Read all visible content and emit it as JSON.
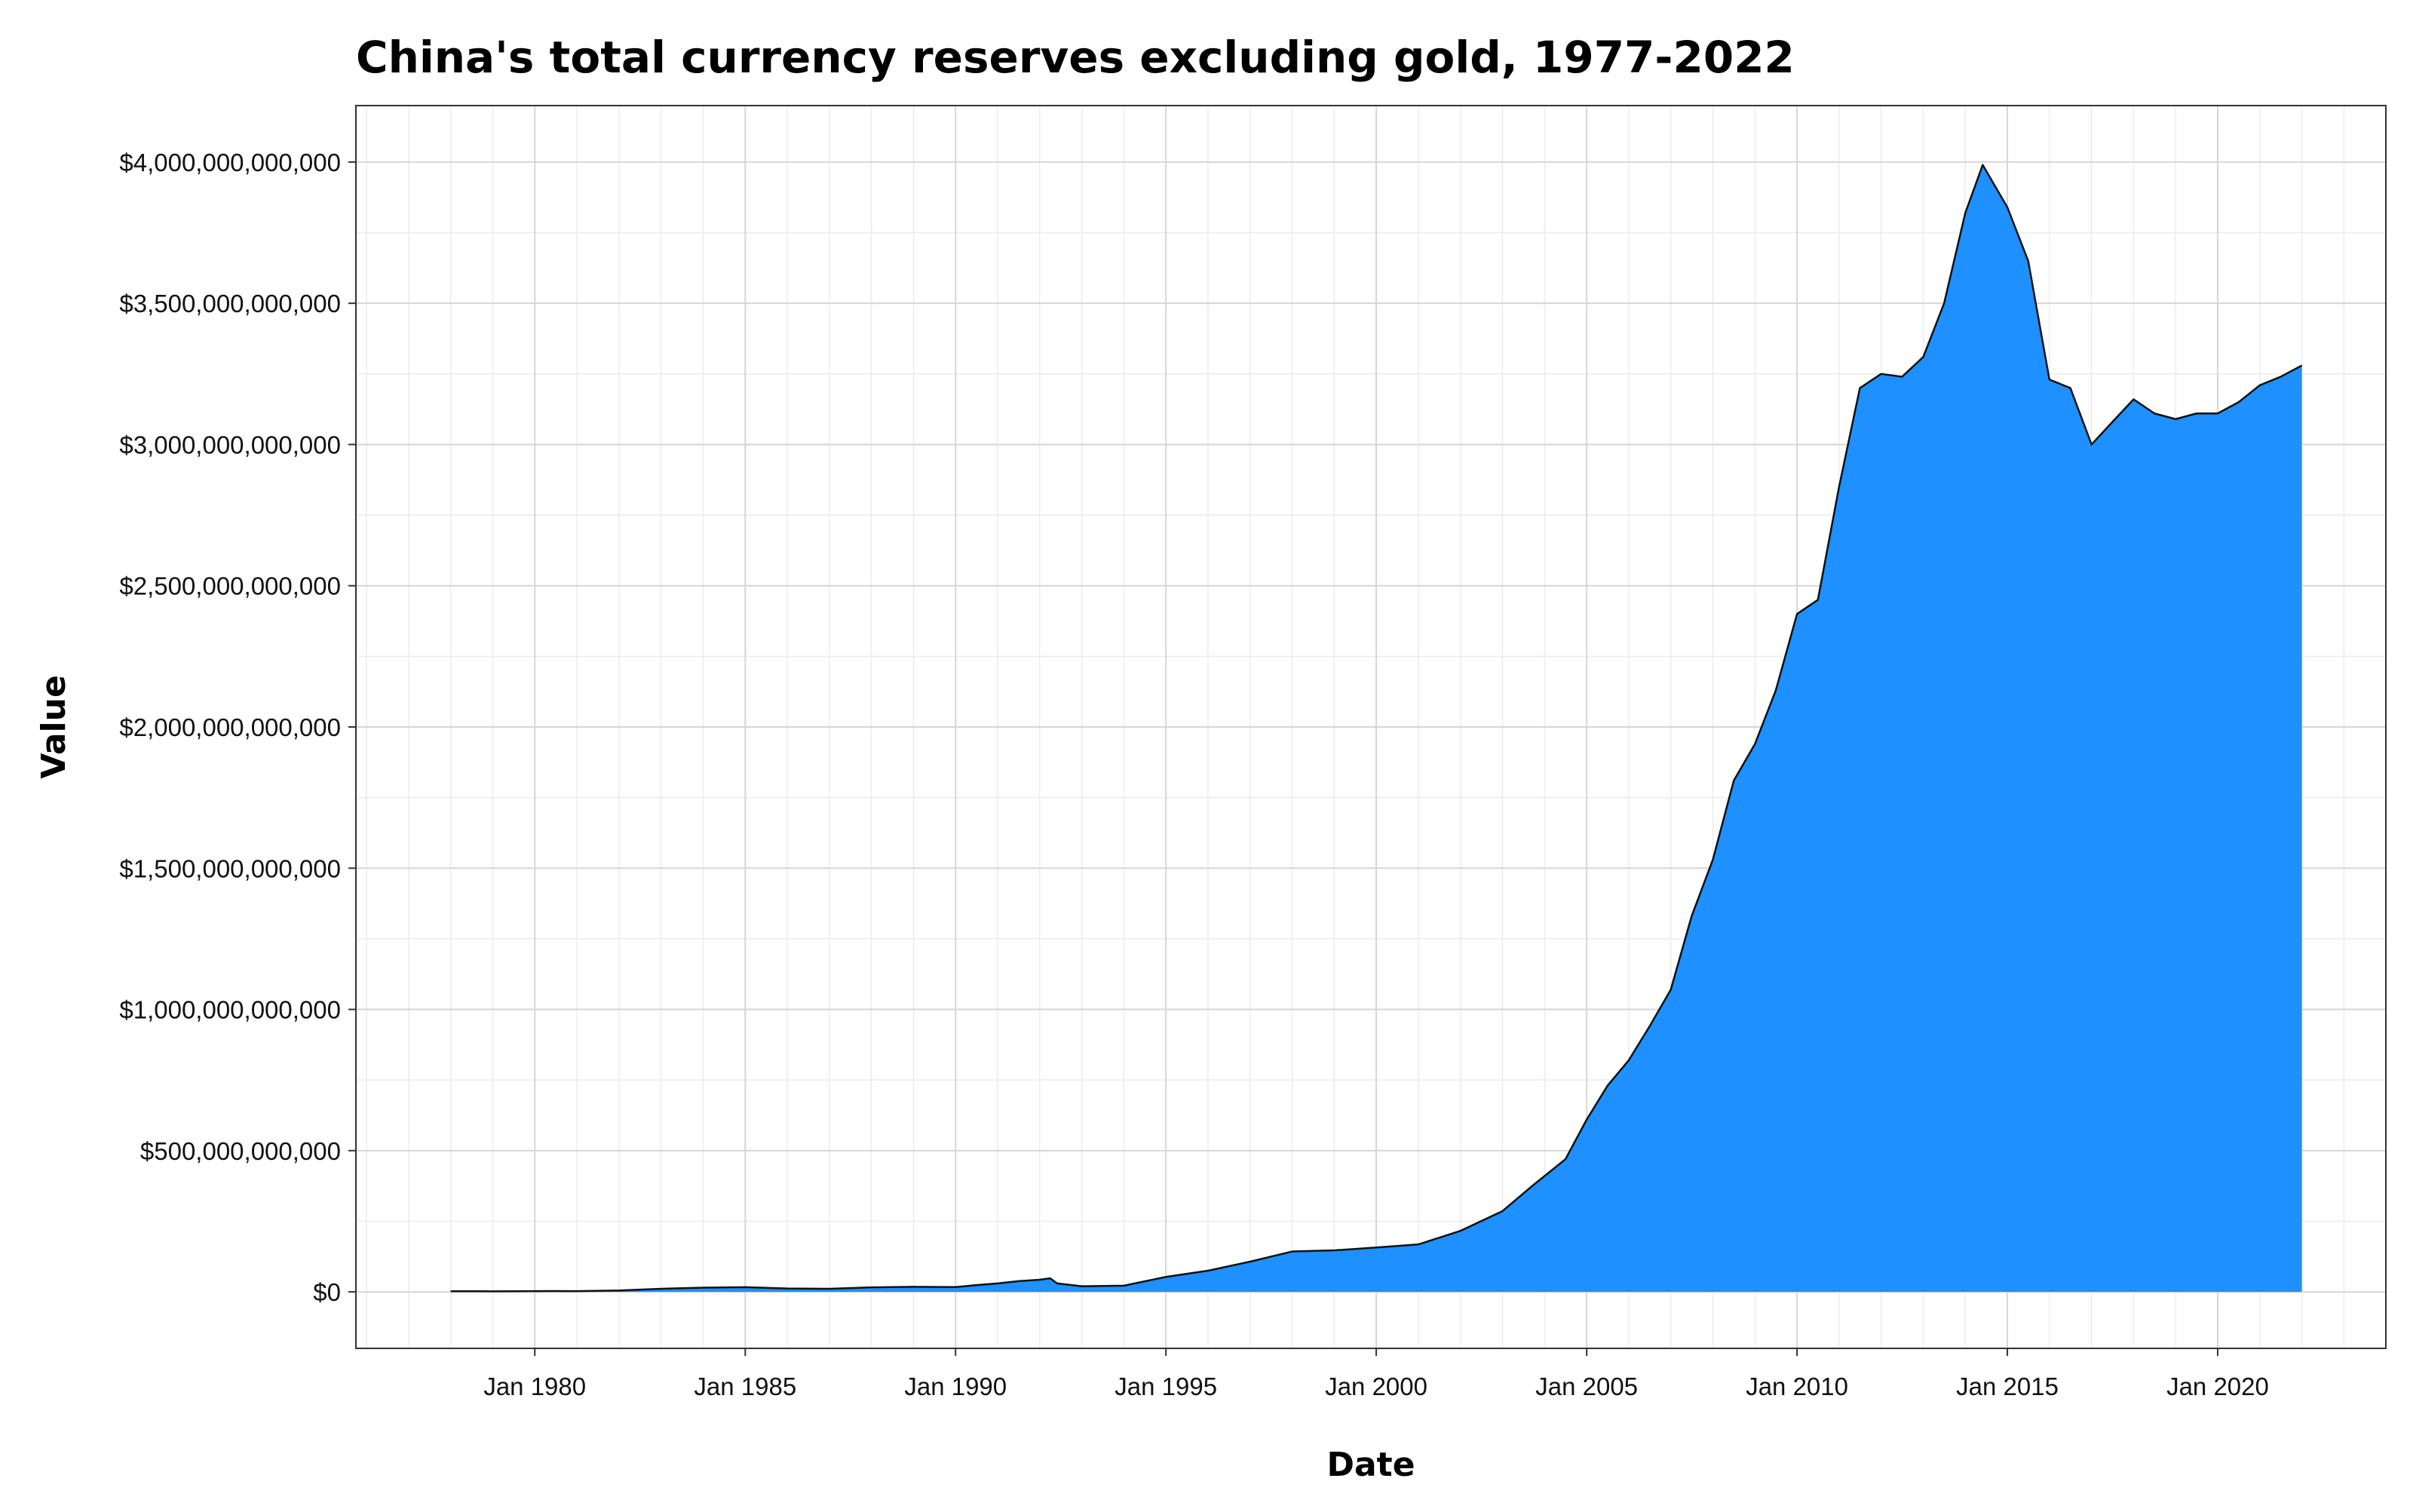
{
  "chart_data": {
    "type": "area",
    "title": "China's total currency reserves excluding gold, 1977-2022",
    "xlabel": "Date",
    "ylabel": "Value",
    "grid": true,
    "legend": "none",
    "fill_color": "#1E90FF",
    "line_color": "#111111",
    "xlim": [
      "1975-10-01",
      "2023-12-31"
    ],
    "ylim": [
      -200000000000,
      4200000000000
    ],
    "x_ticks": [
      {
        "date": "1980-01-01",
        "label": "Jan 1980"
      },
      {
        "date": "1985-01-01",
        "label": "Jan 1985"
      },
      {
        "date": "1990-01-01",
        "label": "Jan 1990"
      },
      {
        "date": "1995-01-01",
        "label": "Jan 1995"
      },
      {
        "date": "2000-01-01",
        "label": "Jan 2000"
      },
      {
        "date": "2005-01-01",
        "label": "Jan 2005"
      },
      {
        "date": "2010-01-01",
        "label": "Jan 2010"
      },
      {
        "date": "2015-01-01",
        "label": "Jan 2015"
      },
      {
        "date": "2020-01-01",
        "label": "Jan 2020"
      }
    ],
    "y_ticks": [
      {
        "value": 0,
        "label": "$0"
      },
      {
        "value": 500000000000,
        "label": "$500,000,000,000"
      },
      {
        "value": 1000000000000,
        "label": "$1,000,000,000,000"
      },
      {
        "value": 1500000000000,
        "label": "$1,500,000,000,000"
      },
      {
        "value": 2000000000000,
        "label": "$2,000,000,000,000"
      },
      {
        "value": 2500000000000,
        "label": "$2,500,000,000,000"
      },
      {
        "value": 3000000000000,
        "label": "$3,000,000,000,000"
      },
      {
        "value": 3500000000000,
        "label": "$3,500,000,000,000"
      },
      {
        "value": 4000000000000,
        "label": "$4,000,000,000,000"
      }
    ],
    "series": [
      {
        "points": [
          {
            "x": "1977-12-31",
            "y": 2300000000
          },
          {
            "x": "1979-01-01",
            "y": 2000000000
          },
          {
            "x": "1980-01-01",
            "y": 2500000000
          },
          {
            "x": "1980-06-01",
            "y": 3000000000
          },
          {
            "x": "1981-01-01",
            "y": 2500000000
          },
          {
            "x": "1982-01-01",
            "y": 5000000000
          },
          {
            "x": "1983-01-01",
            "y": 11000000000
          },
          {
            "x": "1984-01-01",
            "y": 15000000000
          },
          {
            "x": "1985-01-01",
            "y": 16500000000
          },
          {
            "x": "1986-01-01",
            "y": 12000000000
          },
          {
            "x": "1987-01-01",
            "y": 11000000000
          },
          {
            "x": "1988-01-01",
            "y": 16000000000
          },
          {
            "x": "1989-01-01",
            "y": 18000000000
          },
          {
            "x": "1990-01-01",
            "y": 17000000000
          },
          {
            "x": "1990-07-01",
            "y": 24000000000
          },
          {
            "x": "1991-01-01",
            "y": 30000000000
          },
          {
            "x": "1991-07-01",
            "y": 38000000000
          },
          {
            "x": "1992-01-01",
            "y": 43000000000
          },
          {
            "x": "1992-04-01",
            "y": 48000000000
          },
          {
            "x": "1992-06-01",
            "y": 30000000000
          },
          {
            "x": "1993-01-01",
            "y": 20000000000
          },
          {
            "x": "1994-01-01",
            "y": 22000000000
          },
          {
            "x": "1995-01-01",
            "y": 53000000000
          },
          {
            "x": "1996-01-01",
            "y": 75000000000
          },
          {
            "x": "1997-01-01",
            "y": 107000000000
          },
          {
            "x": "1998-01-01",
            "y": 143000000000
          },
          {
            "x": "1999-01-01",
            "y": 147000000000
          },
          {
            "x": "2000-01-01",
            "y": 157000000000
          },
          {
            "x": "2001-01-01",
            "y": 168000000000
          },
          {
            "x": "2002-01-01",
            "y": 216000000000
          },
          {
            "x": "2003-01-01",
            "y": 286000000000
          },
          {
            "x": "2003-10-01",
            "y": 380000000000
          },
          {
            "x": "2004-01-01",
            "y": 410000000000
          },
          {
            "x": "2004-07-01",
            "y": 470000000000
          },
          {
            "x": "2005-01-01",
            "y": 610000000000
          },
          {
            "x": "2005-07-01",
            "y": 730000000000
          },
          {
            "x": "2006-01-01",
            "y": 820000000000
          },
          {
            "x": "2006-07-01",
            "y": 940000000000
          },
          {
            "x": "2007-01-01",
            "y": 1070000000000
          },
          {
            "x": "2007-07-01",
            "y": 1330000000000
          },
          {
            "x": "2008-01-01",
            "y": 1530000000000
          },
          {
            "x": "2008-07-01",
            "y": 1810000000000
          },
          {
            "x": "2009-01-01",
            "y": 1940000000000
          },
          {
            "x": "2009-07-01",
            "y": 2130000000000
          },
          {
            "x": "2010-01-01",
            "y": 2400000000000
          },
          {
            "x": "2010-07-01",
            "y": 2450000000000
          },
          {
            "x": "2011-01-01",
            "y": 2850000000000
          },
          {
            "x": "2011-07-01",
            "y": 3200000000000
          },
          {
            "x": "2012-01-01",
            "y": 3250000000000
          },
          {
            "x": "2012-07-01",
            "y": 3240000000000
          },
          {
            "x": "2013-01-01",
            "y": 3310000000000
          },
          {
            "x": "2013-07-01",
            "y": 3500000000000
          },
          {
            "x": "2014-01-01",
            "y": 3820000000000
          },
          {
            "x": "2014-06-01",
            "y": 3990000000000
          },
          {
            "x": "2015-01-01",
            "y": 3840000000000
          },
          {
            "x": "2015-07-01",
            "y": 3650000000000
          },
          {
            "x": "2016-01-01",
            "y": 3230000000000
          },
          {
            "x": "2016-07-01",
            "y": 3200000000000
          },
          {
            "x": "2017-01-01",
            "y": 3000000000000
          },
          {
            "x": "2017-07-01",
            "y": 3080000000000
          },
          {
            "x": "2018-01-01",
            "y": 3160000000000
          },
          {
            "x": "2018-07-01",
            "y": 3110000000000
          },
          {
            "x": "2019-01-01",
            "y": 3090000000000
          },
          {
            "x": "2019-07-01",
            "y": 3110000000000
          },
          {
            "x": "2020-01-01",
            "y": 3110000000000
          },
          {
            "x": "2020-07-01",
            "y": 3150000000000
          },
          {
            "x": "2021-01-01",
            "y": 3210000000000
          },
          {
            "x": "2021-07-01",
            "y": 3240000000000
          },
          {
            "x": "2022-01-01",
            "y": 3280000000000
          }
        ]
      }
    ]
  }
}
